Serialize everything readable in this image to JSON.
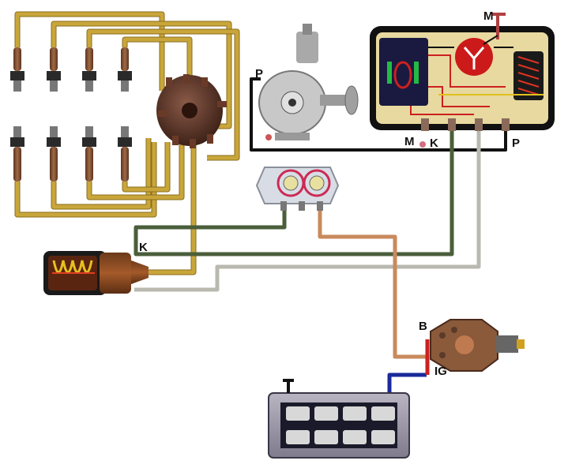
{
  "labels": {
    "m_top": "M",
    "m_bottom": "M",
    "p_distributor": "P",
    "p_module": "P",
    "k_module": "K",
    "k_coil": "K",
    "b_switch": "B",
    "ig_switch": "IG"
  },
  "colors": {
    "ht_lead": "#c9a63a",
    "ht_lead_dark": "#8a6d1e",
    "green_wire": "#4a5e3a",
    "grey_wire": "#b9b9b0",
    "orange_wire": "#c98a5c",
    "blue_wire": "#1a2a9a",
    "red_wire": "#cc2020",
    "black_wire": "#111111",
    "module_frame": "#e8d9a0",
    "plug_body": "#8a5a3a"
  },
  "components": [
    "spark-plugs",
    "distributor-cap",
    "distributor",
    "control-module",
    "voltage-regulator",
    "ignition-coil",
    "ignition-switch",
    "fuse-box"
  ]
}
